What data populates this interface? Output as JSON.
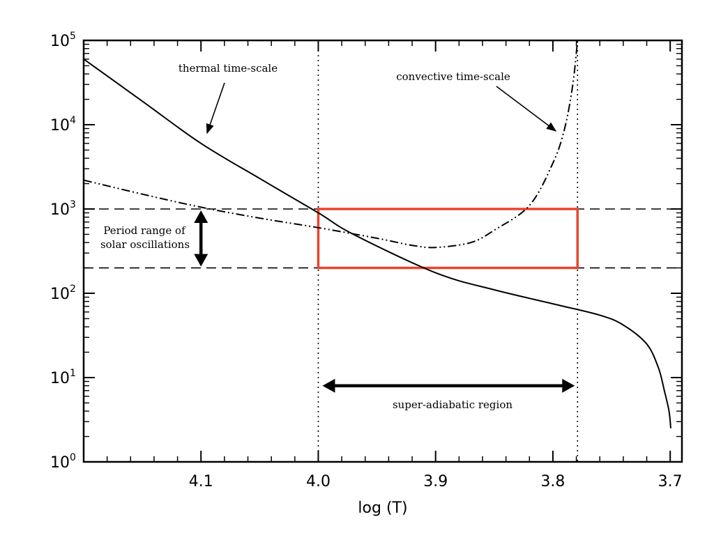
{
  "chart_data": {
    "type": "line",
    "title": "",
    "xlabel": "log (T)",
    "ylabel": "",
    "x_reversed": true,
    "xlim": [
      4.2,
      3.69
    ],
    "y_scale": "log",
    "ylim": [
      1,
      100000
    ],
    "x_ticks": [
      {
        "value": 4.1,
        "label": "4.1"
      },
      {
        "value": 4.0,
        "label": "4.0"
      },
      {
        "value": 3.9,
        "label": "3.9"
      },
      {
        "value": 3.8,
        "label": "3.8"
      },
      {
        "value": 3.7,
        "label": "3.7"
      }
    ],
    "y_ticks": [
      {
        "value": 1,
        "base": "10",
        "exp": "0"
      },
      {
        "value": 10,
        "base": "10",
        "exp": "1"
      },
      {
        "value": 100,
        "base": "10",
        "exp": "2"
      },
      {
        "value": 1000,
        "base": "10",
        "exp": "3"
      },
      {
        "value": 10000,
        "base": "10",
        "exp": "4"
      },
      {
        "value": 100000,
        "base": "10",
        "exp": "5"
      }
    ],
    "series": [
      {
        "name": "thermal time-scale",
        "style": "solid",
        "color": "#000000",
        "x": [
          4.2,
          4.15,
          4.1,
          4.05,
          4.0,
          3.97,
          3.9,
          3.85,
          3.8,
          3.76,
          3.74,
          3.72,
          3.71,
          3.705,
          3.701,
          3.6995
        ],
        "y": [
          60000,
          19000,
          6000,
          2300,
          900,
          500,
          175,
          110,
          75,
          55,
          42,
          25,
          13,
          7,
          4,
          2.5
        ]
      },
      {
        "name": "convective time-scale",
        "style": "dash-dot-dot",
        "color": "#000000",
        "x": [
          4.2,
          4.15,
          4.1,
          4.05,
          4.0,
          3.95,
          3.92,
          3.9,
          3.87,
          3.85,
          3.82,
          3.8,
          3.79,
          3.783,
          3.779
        ],
        "y": [
          2200,
          1500,
          1050,
          780,
          600,
          450,
          370,
          350,
          400,
          560,
          1100,
          3500,
          9000,
          30000,
          100000
        ]
      }
    ],
    "reference_lines": [
      {
        "axis": "y",
        "value": 1000,
        "style": "dashed"
      },
      {
        "axis": "y",
        "value": 200,
        "style": "dashed"
      },
      {
        "axis": "x",
        "value": 4.0,
        "style": "dotted"
      },
      {
        "axis": "x",
        "value": 3.779,
        "style": "dotted"
      }
    ],
    "highlight_box": {
      "x_range": [
        4.0,
        3.779
      ],
      "y_range": [
        200,
        1000
      ],
      "color": "#e8452c"
    },
    "range_arrows": [
      {
        "name": "super-adiabatic region",
        "orientation": "horizontal",
        "x_range": [
          4.0,
          3.779
        ],
        "y": 8
      },
      {
        "name": "period range",
        "orientation": "vertical",
        "x": 4.1,
        "y_range": [
          200,
          1000
        ]
      }
    ],
    "annotations": {
      "thermal_label": "thermal time-scale",
      "convective_label": "convective time-scale",
      "period_label_line1": "Period range  of",
      "period_label_line2": "solar oscillations",
      "region_label": "super-adiabatic region"
    }
  }
}
